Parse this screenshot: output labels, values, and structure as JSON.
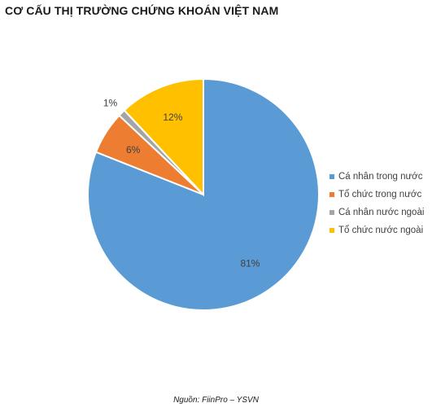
{
  "chart_data": {
    "type": "pie",
    "title": "CƠ CẤU THỊ TRƯỜNG CHỨNG KHOÁN VIỆT NAM",
    "categories": [
      "Cá nhân trong nước",
      "Tổ chức trong nước",
      "Cá nhân nước ngoài",
      "Tổ chức nước ngoài"
    ],
    "values": [
      81,
      6,
      1,
      12
    ],
    "data_labels": [
      "81%",
      "6%",
      "1%",
      "12%"
    ],
    "colors": [
      "#5b9bd5",
      "#ed7d31",
      "#a5a5a5",
      "#ffc000"
    ],
    "start_angle_deg": 0,
    "direction": "clockwise",
    "legend_position": "right"
  },
  "source_note": "Nguồn: FiinPro – YSVN"
}
